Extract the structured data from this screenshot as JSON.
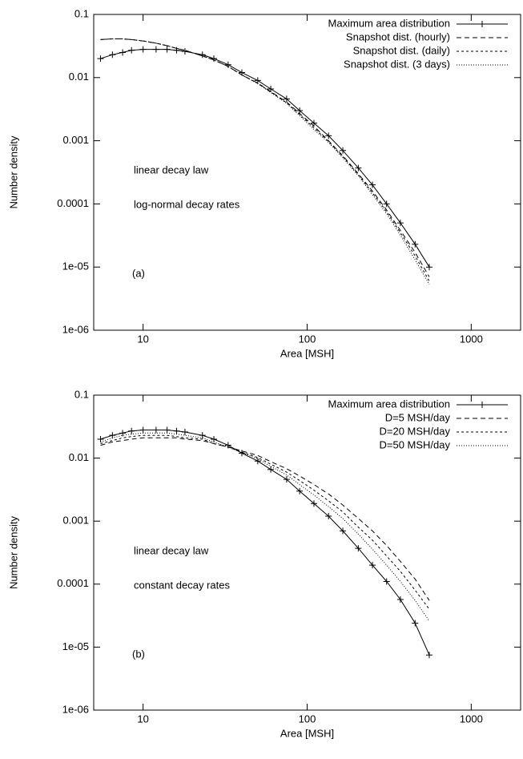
{
  "chart_data": [
    {
      "type": "line",
      "xlabel": "Area [MSH]",
      "ylabel": "Number density",
      "xlog": true,
      "ylog": true,
      "xlim": [
        5,
        2000
      ],
      "xticks": [
        10,
        100,
        1000
      ],
      "ylim": [
        1e-06,
        0.1
      ],
      "yticks": [
        0.1,
        0.01,
        0.001,
        0.0001,
        {
          "value": 1e-05,
          "label": "1e-05"
        },
        {
          "value": 1e-06,
          "label": "1e-06"
        }
      ],
      "legend": "upper right",
      "annotations": [
        "linear decay law",
        "log-normal decay rates",
        "(a)"
      ],
      "x": [
        5.5,
        6.5,
        7.5,
        8.5,
        10,
        12,
        14,
        16,
        18,
        23,
        27,
        33,
        40,
        50,
        60,
        75,
        90,
        110,
        135,
        165,
        205,
        250,
        305,
        370,
        455,
        555
      ],
      "series": [
        {
          "name": "Maximum area distribution",
          "color": "#000000",
          "style": "solid",
          "marker": "+",
          "values": [
            0.02,
            0.023,
            0.025,
            0.027,
            0.028,
            0.028,
            0.028,
            0.027,
            0.026,
            0.023,
            0.02,
            0.016,
            0.012,
            0.009,
            0.0066,
            0.0046,
            0.003,
            0.0019,
            0.0012,
            0.0007,
            0.00037,
            0.0002,
            0.0001,
            5e-05,
            2.3e-05,
            1e-05
          ]
        },
        {
          "name": "Snapshot dist. (hourly)",
          "color": "#000000",
          "style": "dashed",
          "values": [
            0.04,
            0.041,
            0.041,
            0.04,
            0.038,
            0.035,
            0.032,
            0.029,
            0.027,
            0.022,
            0.019,
            0.015,
            0.011,
            0.0082,
            0.006,
            0.0041,
            0.0027,
            0.0017,
            0.001,
            0.00058,
            0.0003,
            0.00016,
            8e-05,
            3.8e-05,
            1.7e-05,
            7e-06
          ]
        },
        {
          "name": "Snapshot dist. (daily)",
          "color": "#000000",
          "style": "short-dashed",
          "values": [
            0.04,
            0.041,
            0.041,
            0.04,
            0.038,
            0.035,
            0.032,
            0.029,
            0.027,
            0.022,
            0.019,
            0.015,
            0.011,
            0.0081,
            0.0059,
            0.004,
            0.0026,
            0.0016,
            0.00097,
            0.00056,
            0.00029,
            0.00015,
            7.5e-05,
            3.5e-05,
            1.5e-05,
            6e-06
          ]
        },
        {
          "name": "Snapshot dist. (3 days)",
          "color": "#000000",
          "style": "dotted",
          "values": [
            0.04,
            0.041,
            0.041,
            0.04,
            0.038,
            0.035,
            0.032,
            0.029,
            0.027,
            0.022,
            0.019,
            0.015,
            0.011,
            0.008,
            0.0058,
            0.0039,
            0.0025,
            0.0015,
            0.00094,
            0.00054,
            0.00028,
            0.00014,
            7e-05,
            3.2e-05,
            1.3e-05,
            5.3e-06
          ]
        }
      ]
    },
    {
      "type": "line",
      "xlabel": "Area [MSH]",
      "ylabel": "Number density",
      "xlog": true,
      "ylog": true,
      "xlim": [
        5,
        2000
      ],
      "xticks": [
        10,
        100,
        1000
      ],
      "ylim": [
        1e-06,
        0.1
      ],
      "yticks": [
        0.1,
        0.01,
        0.001,
        0.0001,
        {
          "value": 1e-05,
          "label": "1e-05"
        },
        {
          "value": 1e-06,
          "label": "1e-06"
        }
      ],
      "legend": "upper right",
      "annotations": [
        "linear decay law",
        "constant decay rates",
        "(b)"
      ],
      "x": [
        5.5,
        6.5,
        7.5,
        8.5,
        10,
        12,
        14,
        16,
        18,
        23,
        27,
        33,
        40,
        50,
        60,
        75,
        90,
        110,
        135,
        165,
        205,
        250,
        305,
        370,
        455,
        555
      ],
      "series": [
        {
          "name": "Maximum area distribution",
          "color": "#000000",
          "style": "solid",
          "marker": "+",
          "values": [
            0.02,
            0.023,
            0.025,
            0.027,
            0.028,
            0.028,
            0.028,
            0.027,
            0.026,
            0.023,
            0.02,
            0.016,
            0.012,
            0.009,
            0.0066,
            0.0046,
            0.003,
            0.0019,
            0.0012,
            0.0007,
            0.00037,
            0.0002,
            0.00011,
            5.7e-05,
            2.4e-05,
            7.5e-06
          ]
        },
        {
          "name": "D=5 MSH/day",
          "color": "#000000",
          "style": "dashed",
          "values": [
            0.016,
            0.018,
            0.019,
            0.02,
            0.021,
            0.021,
            0.021,
            0.021,
            0.02,
            0.019,
            0.017,
            0.015,
            0.013,
            0.011,
            0.0088,
            0.0068,
            0.0052,
            0.0038,
            0.0027,
            0.0018,
            0.0011,
            0.0007,
            0.00041,
            0.00023,
            0.00012,
            5.5e-05
          ]
        },
        {
          "name": "D=20 MSH/day",
          "color": "#000000",
          "style": "short-dashed",
          "values": [
            0.017,
            0.019,
            0.021,
            0.022,
            0.023,
            0.023,
            0.023,
            0.022,
            0.021,
            0.02,
            0.017,
            0.015,
            0.0125,
            0.0102,
            0.008,
            0.006,
            0.0044,
            0.0031,
            0.0021,
            0.0014,
            0.0008,
            0.0005,
            0.00028,
            0.00016,
            8e-05,
            4e-05
          ]
        },
        {
          "name": "D=50 MSH/day",
          "color": "#000000",
          "style": "dotted",
          "values": [
            0.018,
            0.021,
            0.023,
            0.024,
            0.025,
            0.025,
            0.025,
            0.024,
            0.023,
            0.021,
            0.018,
            0.015,
            0.0122,
            0.0097,
            0.0074,
            0.0054,
            0.0038,
            0.0026,
            0.0017,
            0.0011,
            0.00062,
            0.00036,
            0.0002,
            0.00011,
            5.5e-05,
            2.6e-05
          ]
        }
      ]
    }
  ]
}
